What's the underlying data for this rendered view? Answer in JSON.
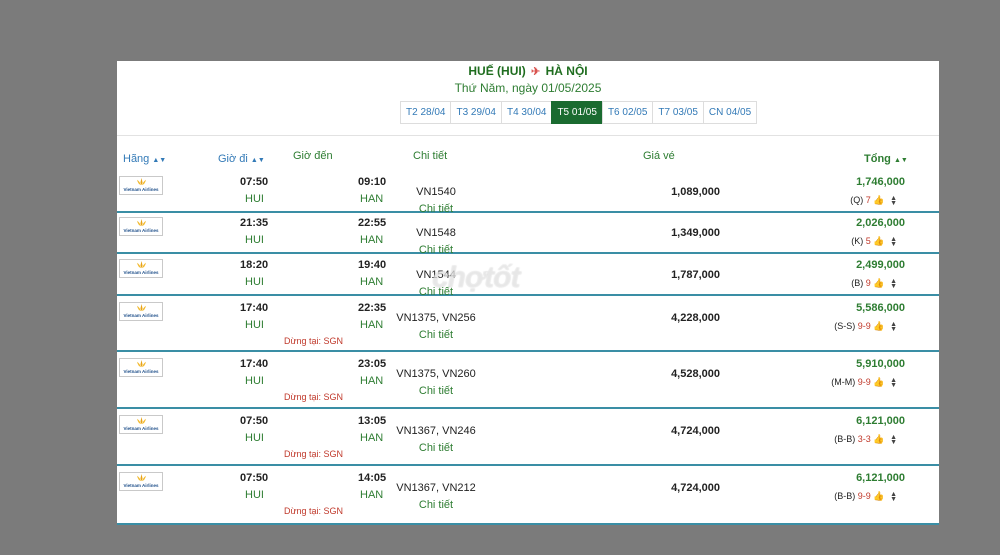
{
  "header": {
    "origin": "HUẾ (HUI)",
    "destination": "HÀ NỘI",
    "date_text": "Thứ Năm, ngày 01/05/2025"
  },
  "tabs": [
    {
      "label": "T2 28/04",
      "active": false
    },
    {
      "label": "T3 29/04",
      "active": false
    },
    {
      "label": "T4 30/04",
      "active": false
    },
    {
      "label": "T5 01/05",
      "active": true
    },
    {
      "label": "T6 02/05",
      "active": false
    },
    {
      "label": "T7 03/05",
      "active": false
    },
    {
      "label": "CN 04/05",
      "active": false
    }
  ],
  "columns": {
    "airline": "Hãng",
    "depart": "Giờ đi",
    "arrive": "Giờ đến",
    "detail": "Chi tiết",
    "fare": "Giá vé",
    "total": "Tổng"
  },
  "airline_logo_text": "Vietnam Airlines",
  "watermark": "chợtốt",
  "icons": {
    "sort": "sort-arrows-icon",
    "plane": "plane-icon",
    "seat": "thumbs-up-icon",
    "logo": "vietnam-airlines-lotus-logo"
  },
  "flights": [
    {
      "dep_time": "07:50",
      "dep_code": "HUI",
      "arr_time": "09:10",
      "arr_code": "HAN",
      "flight_no": "VN1540",
      "detail_link": "Chi tiết",
      "fare": "1,089,000",
      "total": "1,746,000",
      "fare_class": "(Q)",
      "seats": "7",
      "stop": ""
    },
    {
      "dep_time": "21:35",
      "dep_code": "HUI",
      "arr_time": "22:55",
      "arr_code": "HAN",
      "flight_no": "VN1548",
      "detail_link": "Chi tiết",
      "fare": "1,349,000",
      "total": "2,026,000",
      "fare_class": "(K)",
      "seats": "5",
      "stop": ""
    },
    {
      "dep_time": "18:20",
      "dep_code": "HUI",
      "arr_time": "19:40",
      "arr_code": "HAN",
      "flight_no": "VN1544",
      "detail_link": "Chi tiết",
      "fare": "1,787,000",
      "total": "2,499,000",
      "fare_class": "(B)",
      "seats": "9",
      "stop": ""
    },
    {
      "dep_time": "17:40",
      "dep_code": "HUI",
      "arr_time": "22:35",
      "arr_code": "HAN",
      "flight_no": "VN1375, VN256",
      "detail_link": "Chi tiết",
      "fare": "4,228,000",
      "total": "5,586,000",
      "fare_class": "(S-S)",
      "seats": "9-9",
      "stop": "Dừng tại: SGN"
    },
    {
      "dep_time": "17:40",
      "dep_code": "HUI",
      "arr_time": "23:05",
      "arr_code": "HAN",
      "flight_no": "VN1375, VN260",
      "detail_link": "Chi tiết",
      "fare": "4,528,000",
      "total": "5,910,000",
      "fare_class": "(M-M)",
      "seats": "9-9",
      "stop": "Dừng tại: SGN"
    },
    {
      "dep_time": "07:50",
      "dep_code": "HUI",
      "arr_time": "13:05",
      "arr_code": "HAN",
      "flight_no": "VN1367, VN246",
      "detail_link": "Chi tiết",
      "fare": "4,724,000",
      "total": "6,121,000",
      "fare_class": "(B-B)",
      "seats": "3-3",
      "stop": "Dừng tại: SGN"
    },
    {
      "dep_time": "07:50",
      "dep_code": "HUI",
      "arr_time": "14:05",
      "arr_code": "HAN",
      "flight_no": "VN1367, VN212",
      "detail_link": "Chi tiết",
      "fare": "4,724,000",
      "total": "6,121,000",
      "fare_class": "(B-B)",
      "seats": "9-9",
      "stop": "Dừng tại: SGN"
    }
  ]
}
